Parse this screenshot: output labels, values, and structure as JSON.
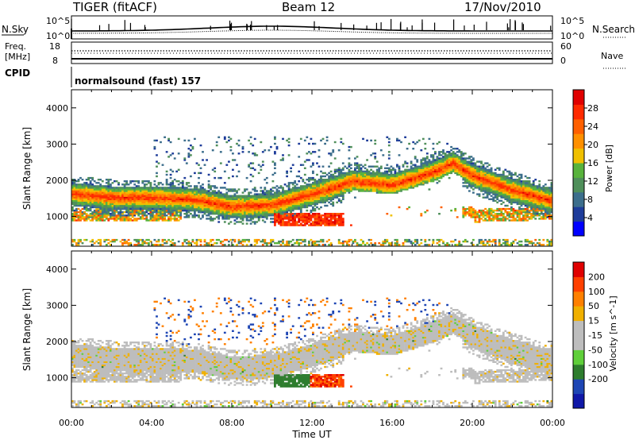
{
  "header": {
    "title": "TIGER (fitACF)",
    "beam": "Beam 12",
    "date": "17/Nov/2010"
  },
  "panels": {
    "nsky": {
      "label": "N.Sky",
      "tick_top": "10^5",
      "tick_bot": "10^0",
      "right_label": "N.Search",
      "right_tick_top": "10^5",
      "right_tick_bot": "10^0"
    },
    "freq": {
      "label1": "Freq.",
      "label2": "[MHz]",
      "tick_top": "18",
      "tick_bot": "8",
      "right_label": "Nave",
      "right_tick_top": "60",
      "right_tick_bot": "0"
    },
    "cpid": {
      "label": "CPID",
      "mode": "normalsound (fast) 157"
    }
  },
  "colors": {
    "power": [
      "#0000ff",
      "#1e3c9a",
      "#3c6e8c",
      "#4f8f5a",
      "#58b33c",
      "#f0c000",
      "#ff9000",
      "#ff6000",
      "#ff2a00",
      "#e00000"
    ],
    "velocity": [
      "#1018a8",
      "#1e46b4",
      "#2e7d2e",
      "#5fcf3a",
      "#bdbdbd",
      "#bdbdbd",
      "#f0b000",
      "#ff8000",
      "#ff4000",
      "#e00000"
    ],
    "ground_scatter": "#bdbdbd"
  },
  "chart_data": [
    {
      "type": "heatmap",
      "name": "power-panel",
      "ylabel": "Slant Range [km]",
      "xlabel": "Time UT",
      "x_ticks": [
        "00:00",
        "04:00",
        "08:00",
        "12:00",
        "16:00",
        "20:00",
        "00:00"
      ],
      "y_ticks": [
        1000,
        2000,
        3000,
        4000
      ],
      "ylim": [
        180,
        4500
      ],
      "xlim_hours": [
        0,
        24
      ],
      "colorbar": {
        "label": "Power [dB]",
        "ticks": [
          4,
          8,
          12,
          16,
          20,
          24,
          28
        ],
        "range": [
          0,
          32
        ]
      }
    },
    {
      "type": "heatmap",
      "name": "velocity-panel",
      "ylabel": "Slant Range [km]",
      "xlabel": "Time UT",
      "x_ticks": [
        "00:00",
        "04:00",
        "08:00",
        "12:00",
        "16:00",
        "20:00",
        "00:00"
      ],
      "y_ticks": [
        1000,
        2000,
        3000,
        4000
      ],
      "ylim": [
        180,
        4500
      ],
      "xlim_hours": [
        0,
        24
      ],
      "colorbar": {
        "label": "Velocity [m s^-1]",
        "ticks": [
          "200",
          "100",
          "50",
          "15",
          "-15",
          "-50",
          "-100",
          "-200"
        ]
      }
    }
  ]
}
